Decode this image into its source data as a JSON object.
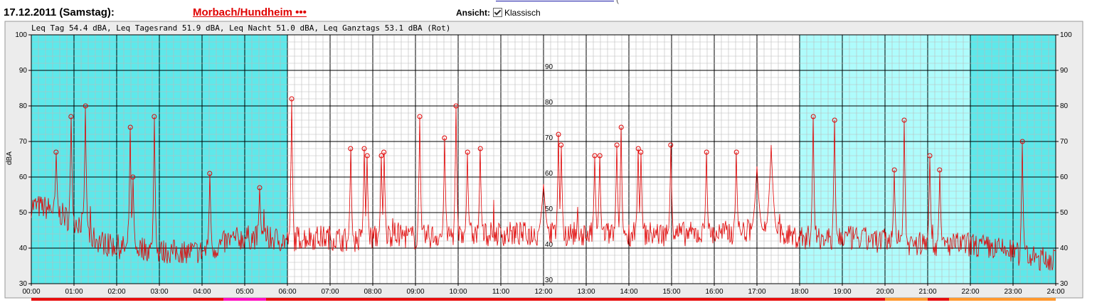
{
  "header": {
    "date": "17.12.2011 (Samstag):",
    "station": "Morbach/Hundheim •••",
    "view_label": "Ansicht:",
    "view_option": "Klassisch",
    "view_checked": true
  },
  "chart_data": {
    "type": "line",
    "title": "Leq Tag 54.4 dBA, Leq Tagesrand 51.9 dBA, Leq Nacht 51.0 dBA, Leq Ganztags 53.1 dBA (Rot)",
    "ylabel": "dBA",
    "ylim": [
      30,
      100
    ],
    "xlim": [
      0,
      24
    ],
    "yticks": [
      "30",
      "40",
      "50",
      "60",
      "70",
      "80",
      "90",
      "100"
    ],
    "inner_yticks": [
      "30",
      "40",
      "50",
      "60",
      "70",
      "80",
      "90"
    ],
    "xticks": [
      "00:00",
      "01:00",
      "02:00",
      "03:00",
      "04:00",
      "05:00",
      "06:00",
      "07:00",
      "08:00",
      "09:00",
      "10:00",
      "11:00",
      "12:00",
      "13:00",
      "14:00",
      "15:00",
      "16:00",
      "17:00",
      "18:00",
      "19:00",
      "20:00",
      "21:00",
      "22:00",
      "23:00",
      "24:00"
    ],
    "line_color": "#e00000",
    "marker_color": "#e00000",
    "grid": true,
    "background_bands": [
      {
        "from": 0,
        "to": 6,
        "color": "#5ee8ea"
      },
      {
        "from": 18,
        "to": 22,
        "color": "#aefcfc"
      },
      {
        "from": 22,
        "to": 24,
        "color": "#5ee8ea"
      }
    ],
    "bottom_bar": [
      {
        "from": 0,
        "to": 4.5,
        "color": "#e81010"
      },
      {
        "from": 4.5,
        "to": 5.5,
        "color": "#ff10c0"
      },
      {
        "from": 5.5,
        "to": 20,
        "color": "#e81010"
      },
      {
        "from": 20,
        "to": 21,
        "color": "#ff9a30"
      },
      {
        "from": 21,
        "to": 21.5,
        "color": "#e81010"
      },
      {
        "from": 21.5,
        "to": 24,
        "color": "#ff9a30"
      }
    ],
    "baseline": [
      [
        0.0,
        52
      ],
      [
        0.5,
        51
      ],
      [
        0.9,
        48
      ],
      [
        1.2,
        47
      ],
      [
        1.4,
        43
      ],
      [
        1.8,
        41
      ],
      [
        2.2,
        40
      ],
      [
        2.6,
        40
      ],
      [
        3.0,
        39
      ],
      [
        3.5,
        39
      ],
      [
        4.0,
        39
      ],
      [
        4.3,
        40
      ],
      [
        4.6,
        42
      ],
      [
        5.0,
        43
      ],
      [
        5.5,
        43
      ],
      [
        6.0,
        42
      ],
      [
        6.3,
        43
      ],
      [
        7.0,
        43
      ],
      [
        7.5,
        42
      ],
      [
        8.0,
        43
      ],
      [
        8.5,
        44
      ],
      [
        9.0,
        43
      ],
      [
        10.0,
        44
      ],
      [
        11.0,
        44
      ],
      [
        12.0,
        44
      ],
      [
        13.0,
        44
      ],
      [
        14.0,
        44
      ],
      [
        15.0,
        44
      ],
      [
        16.0,
        44
      ],
      [
        17.0,
        45
      ],
      [
        17.5,
        44
      ],
      [
        18.0,
        43
      ],
      [
        19.0,
        43
      ],
      [
        20.0,
        42
      ],
      [
        21.0,
        41
      ],
      [
        21.5,
        41
      ],
      [
        22.0,
        41
      ],
      [
        22.5,
        40
      ],
      [
        23.0,
        39
      ],
      [
        23.5,
        37
      ],
      [
        24.0,
        37
      ]
    ],
    "peaks": [
      {
        "t": 0.58,
        "v": 67
      },
      {
        "t": 0.93,
        "v": 77
      },
      {
        "t": 1.27,
        "v": 80
      },
      {
        "t": 2.32,
        "v": 74
      },
      {
        "t": 2.38,
        "v": 60
      },
      {
        "t": 2.88,
        "v": 77
      },
      {
        "t": 4.18,
        "v": 61
      },
      {
        "t": 5.35,
        "v": 57
      },
      {
        "t": 6.1,
        "v": 82
      },
      {
        "t": 7.48,
        "v": 68
      },
      {
        "t": 7.8,
        "v": 68
      },
      {
        "t": 7.87,
        "v": 66
      },
      {
        "t": 8.2,
        "v": 66
      },
      {
        "t": 8.26,
        "v": 67
      },
      {
        "t": 9.1,
        "v": 77
      },
      {
        "t": 9.68,
        "v": 71
      },
      {
        "t": 9.95,
        "v": 80
      },
      {
        "t": 10.22,
        "v": 67
      },
      {
        "t": 10.52,
        "v": 68
      },
      {
        "t": 12.35,
        "v": 72
      },
      {
        "t": 12.41,
        "v": 69
      },
      {
        "t": 13.2,
        "v": 66
      },
      {
        "t": 13.32,
        "v": 66
      },
      {
        "t": 13.72,
        "v": 69
      },
      {
        "t": 13.82,
        "v": 74
      },
      {
        "t": 14.22,
        "v": 68
      },
      {
        "t": 14.28,
        "v": 67
      },
      {
        "t": 14.98,
        "v": 69
      },
      {
        "t": 15.82,
        "v": 67
      },
      {
        "t": 16.52,
        "v": 67
      },
      {
        "t": 18.32,
        "v": 77
      },
      {
        "t": 18.82,
        "v": 76
      },
      {
        "t": 20.22,
        "v": 62
      },
      {
        "t": 20.45,
        "v": 76
      },
      {
        "t": 21.05,
        "v": 66
      },
      {
        "t": 21.28,
        "v": 62
      },
      {
        "t": 23.22,
        "v": 70
      }
    ],
    "bumps": [
      {
        "t": 17.0,
        "v": 63
      },
      {
        "t": 17.33,
        "v": 69
      },
      {
        "t": 12.0,
        "v": 58
      }
    ]
  }
}
